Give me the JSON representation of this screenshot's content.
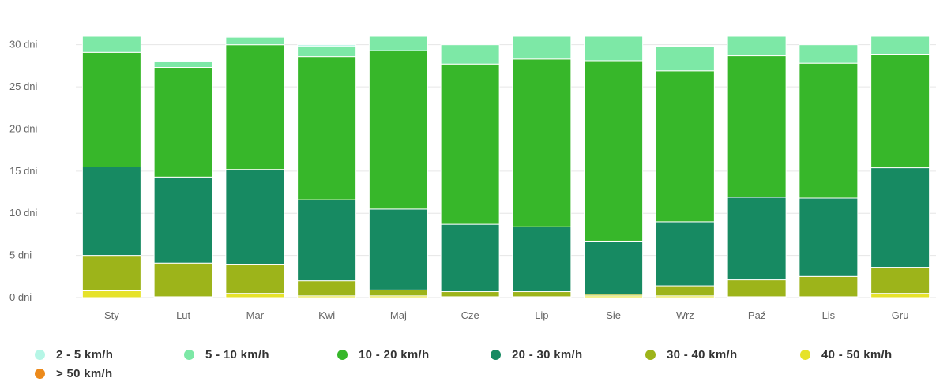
{
  "chart_data": {
    "type": "bar",
    "stacked": true,
    "categories": [
      "Sty",
      "Lut",
      "Mar",
      "Kwi",
      "Maj",
      "Cze",
      "Lip",
      "Sie",
      "Wrz",
      "Paź",
      "Lis",
      "Gru"
    ],
    "y_ticks": [
      "0 dni",
      "5 dni",
      "10 dni",
      "15 dni",
      "20 dni",
      "25 dni",
      "30 dni"
    ],
    "ylim": [
      0,
      31
    ],
    "grid": true,
    "legend_position": "bottom",
    "series": [
      {
        "name": "> 50 km/h",
        "color": "#ec8a1b",
        "values": [
          0,
          0,
          0,
          0,
          0,
          0,
          0,
          0,
          0,
          0,
          0,
          0
        ]
      },
      {
        "name": "40 - 50 km/h",
        "color": "#e6e22a",
        "values": [
          0.8,
          0.1,
          0.5,
          0.2,
          0.2,
          0.1,
          0.1,
          0.2,
          0.2,
          0.1,
          0.1,
          0.5
        ]
      },
      {
        "name": "30 - 40 km/h",
        "color": "#9db41a",
        "values": [
          4.2,
          4.0,
          3.4,
          1.8,
          0.7,
          0.6,
          0.6,
          0.2,
          1.2,
          2.0,
          2.4,
          3.1
        ]
      },
      {
        "name": "20 - 30 km/h",
        "color": "#178a62",
        "values": [
          10.5,
          10.2,
          11.3,
          9.6,
          9.6,
          8.0,
          7.7,
          6.3,
          7.6,
          9.8,
          9.3,
          11.8
        ]
      },
      {
        "name": "10 - 20 km/h",
        "color": "#37b72a",
        "values": [
          13.6,
          13.0,
          14.8,
          17.0,
          18.8,
          19.0,
          19.9,
          21.4,
          17.9,
          16.8,
          16.0,
          13.4
        ]
      },
      {
        "name": "5 - 10 km/h",
        "color": "#7de8a6",
        "values": [
          1.9,
          0.7,
          0.9,
          1.2,
          1.7,
          2.3,
          2.7,
          2.9,
          2.9,
          2.3,
          2.2,
          2.2
        ]
      },
      {
        "name": "2 - 5 km/h",
        "color": "#b6f6e6",
        "values": [
          0,
          0.1,
          0.1,
          0.2,
          0,
          0,
          0,
          0,
          0,
          0,
          0,
          0
        ]
      }
    ],
    "legend_order": [
      "2 - 5 km/h",
      "5 - 10 km/h",
      "10 - 20 km/h",
      "20 - 30 km/h",
      "30 - 40 km/h",
      "40 - 50 km/h",
      "> 50 km/h"
    ]
  }
}
